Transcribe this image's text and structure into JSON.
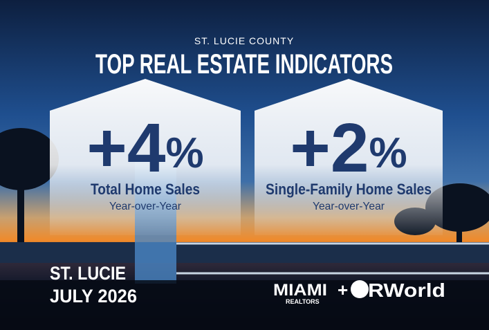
{
  "header": {
    "kicker": "ST. LUCIE COUNTY",
    "title": "TOP REAL ESTATE INDICATORS"
  },
  "cards": [
    {
      "value": "+4",
      "unit": "%",
      "label": "Total Home Sales",
      "sublabel": "Year-over-Year"
    },
    {
      "value": "+2",
      "unit": "%",
      "label": "Single-Family Home Sales",
      "sublabel": "Year-over-Year"
    }
  ],
  "footer": {
    "location": "ST. LUCIE",
    "date": "JULY 2026"
  },
  "logos": {
    "miami": "MIAMI",
    "realtors": "REALTORS",
    "plus": "+",
    "rworld": "RWorld"
  }
}
